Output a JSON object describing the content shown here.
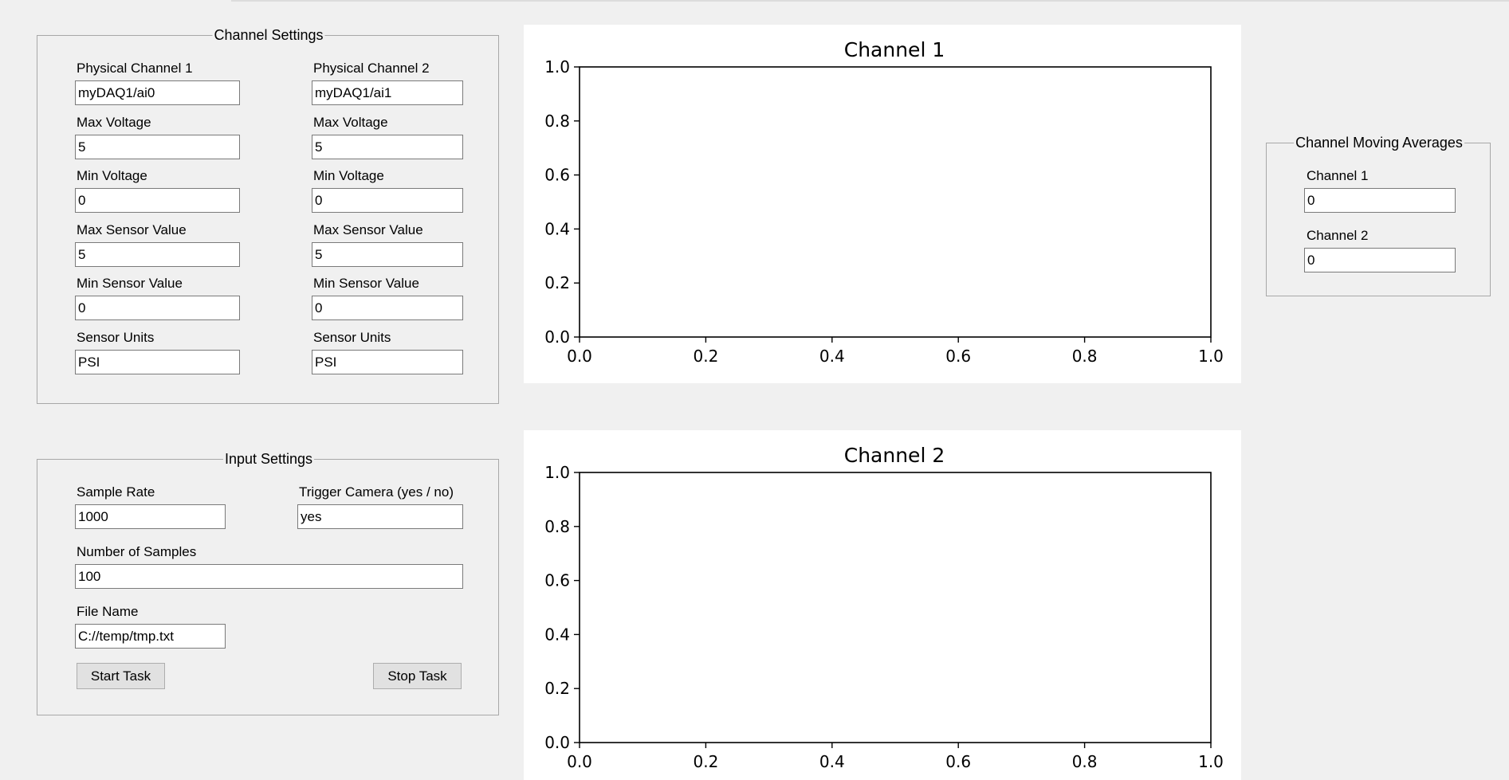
{
  "channel_settings": {
    "title": "Channel Settings",
    "ch1": {
      "physical_label": "Physical Channel 1",
      "physical_value": "myDAQ1/ai0",
      "max_voltage_label": "Max Voltage",
      "max_voltage_value": "5",
      "min_voltage_label": "Min Voltage",
      "min_voltage_value": "0",
      "max_sensor_label": "Max Sensor Value",
      "max_sensor_value": "5",
      "min_sensor_label": "Min Sensor Value",
      "min_sensor_value": "0",
      "units_label": "Sensor Units",
      "units_value": "PSI"
    },
    "ch2": {
      "physical_label": "Physical Channel 2",
      "physical_value": "myDAQ1/ai1",
      "max_voltage_label": "Max Voltage",
      "max_voltage_value": "5",
      "min_voltage_label": "Min Voltage",
      "min_voltage_value": "0",
      "max_sensor_label": "Max Sensor Value",
      "max_sensor_value": "5",
      "min_sensor_label": "Min Sensor Value",
      "min_sensor_value": "0",
      "units_label": "Sensor Units",
      "units_value": "PSI"
    }
  },
  "input_settings": {
    "title": "Input Settings",
    "sample_rate_label": "Sample Rate",
    "sample_rate_value": "1000",
    "trigger_label": "Trigger Camera (yes / no)",
    "trigger_value": "yes",
    "num_samples_label": "Number of Samples",
    "num_samples_value": "100",
    "file_name_label": "File Name",
    "file_name_value": "C://temp/tmp.txt",
    "start_label": "Start Task",
    "stop_label": "Stop Task"
  },
  "moving_averages": {
    "title": "Channel Moving Averages",
    "ch1_label": "Channel 1",
    "ch1_value": "0",
    "ch2_label": "Channel 2",
    "ch2_value": "0"
  },
  "chart_data": [
    {
      "type": "line",
      "title": "Channel 1",
      "xlabel": "",
      "ylabel": "",
      "xlim": [
        0,
        1
      ],
      "ylim": [
        0,
        1
      ],
      "xticks": [
        "0.0",
        "0.2",
        "0.4",
        "0.6",
        "0.8",
        "1.0"
      ],
      "yticks": [
        "0.0",
        "0.2",
        "0.4",
        "0.6",
        "0.8",
        "1.0"
      ],
      "grid": false,
      "series": []
    },
    {
      "type": "line",
      "title": "Channel 2",
      "xlabel": "",
      "ylabel": "",
      "xlim": [
        0,
        1
      ],
      "ylim": [
        0,
        1
      ],
      "xticks": [
        "0.0",
        "0.2",
        "0.4",
        "0.6",
        "0.8",
        "1.0"
      ],
      "yticks": [
        "0.0",
        "0.2",
        "0.4",
        "0.6",
        "0.8",
        "1.0"
      ],
      "grid": false,
      "series": []
    }
  ]
}
